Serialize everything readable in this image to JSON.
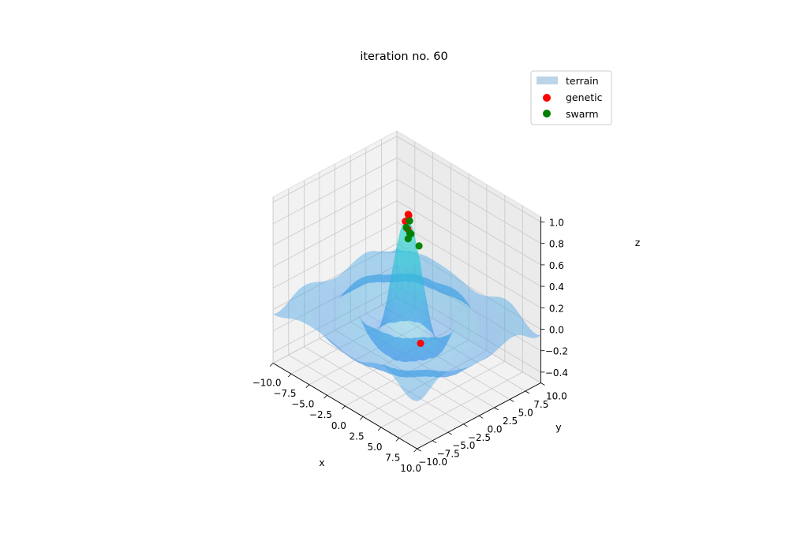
{
  "chart_data": {
    "type": "surface3d",
    "title": "iteration no. 60",
    "xlabel": "x",
    "ylabel": "y",
    "zlabel": "z",
    "xlim": [
      -10,
      10
    ],
    "ylim": [
      -10,
      10
    ],
    "zlim": [
      -0.5,
      1.05
    ],
    "x_ticks": [
      "−10.0",
      "−7.5",
      "−5.0",
      "−2.5",
      "0.0",
      "2.5",
      "5.0",
      "7.5",
      "10.0"
    ],
    "y_ticks": [
      "−10.0",
      "−7.5",
      "−5.0",
      "−2.5",
      "0.0",
      "2.5",
      "5.0",
      "7.5",
      "10.0"
    ],
    "z_ticks": [
      "−0.4",
      "−0.2",
      "0.0",
      "0.2",
      "0.4",
      "0.6",
      "0.8",
      "1.0"
    ],
    "x_tick_values": [
      -10,
      -7.5,
      -5,
      -2.5,
      0,
      2.5,
      5,
      7.5,
      10
    ],
    "y_tick_values": [
      -10,
      -7.5,
      -5,
      -2.5,
      0,
      2.5,
      5,
      7.5,
      10
    ],
    "z_tick_values": [
      -0.4,
      -0.2,
      0,
      0.2,
      0.4,
      0.6,
      0.8,
      1.0
    ],
    "grid": true,
    "legend_position": "top-right",
    "legend": [
      {
        "label": "terrain",
        "kind": "patch",
        "color": "#bcd4e8"
      },
      {
        "label": "genetic",
        "kind": "marker",
        "color": "#ff0000"
      },
      {
        "label": "swarm",
        "kind": "marker",
        "color": "#008000"
      }
    ],
    "series": [
      {
        "name": "genetic",
        "color": "#ff0000",
        "points": [
          {
            "x": 0.1,
            "y": 0.1,
            "z": 0.98
          },
          {
            "x": 0.0,
            "y": 0.3,
            "z": 0.96
          },
          {
            "x": -0.3,
            "y": 0.1,
            "z": 0.9
          },
          {
            "x": 0.3,
            "y": -0.2,
            "z": 0.86
          },
          {
            "x": 1.2,
            "y": 0.8,
            "z": -0.2
          }
        ]
      },
      {
        "name": "swarm",
        "color": "#008000",
        "points": [
          {
            "x": 0.2,
            "y": 0.2,
            "z": 0.92
          },
          {
            "x": 0.0,
            "y": -0.1,
            "z": 0.86
          },
          {
            "x": 0.4,
            "y": 0.0,
            "z": 0.82
          },
          {
            "x": 0.3,
            "y": 0.3,
            "z": 0.8
          },
          {
            "x": -0.6,
            "y": 0.9,
            "z": 0.7
          },
          {
            "x": 1.0,
            "y": 0.8,
            "z": 0.7
          }
        ]
      }
    ]
  }
}
